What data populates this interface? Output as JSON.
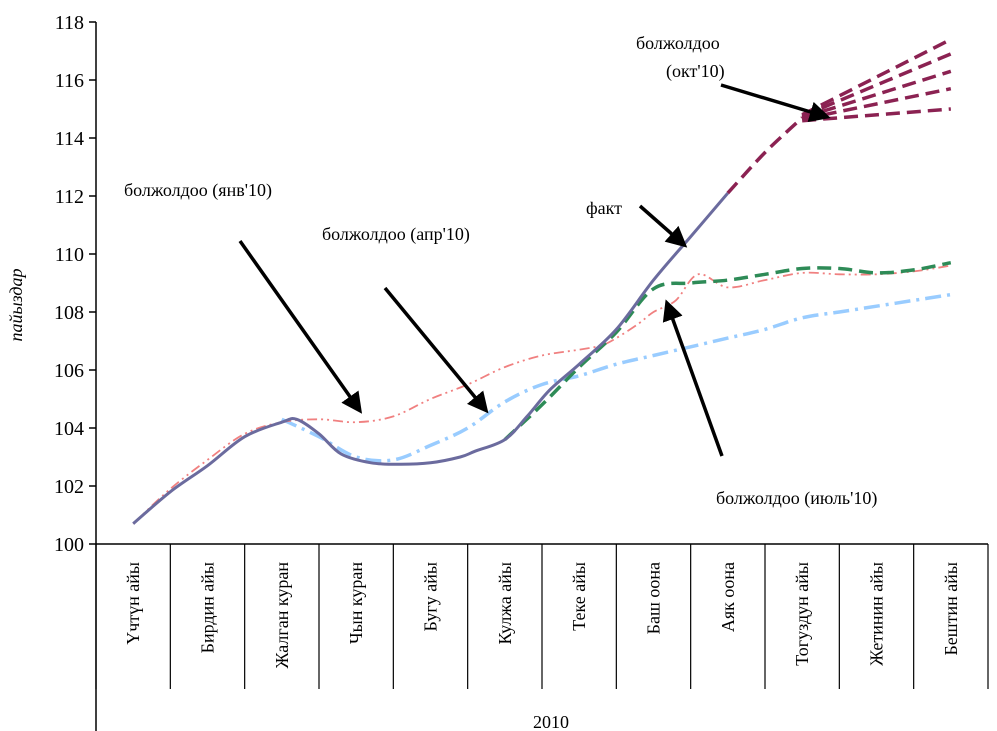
{
  "chart_data": {
    "type": "line",
    "xlabel": "2010",
    "ylabel": "пайыздар",
    "ylim": [
      100,
      118
    ],
    "yticks": [
      100,
      102,
      104,
      106,
      108,
      110,
      112,
      114,
      116,
      118
    ],
    "categories": [
      "Үчтүн айы",
      "Бирдин айы",
      "Жалган куран",
      "Чын куран",
      "Бугу айы",
      "Кулжа айы",
      "Теке айы",
      "Баш оона",
      "Аяк оона",
      "Тогуздун айы",
      "Жетинин айы",
      "Бештин айы"
    ],
    "series": [
      {
        "name": "факт",
        "color": "#6B6B9E",
        "style": "solid",
        "x": [
          0,
          0.5,
          1,
          1.5,
          2,
          2.2,
          2.5,
          2.8,
          3.2,
          3.6,
          4,
          4.4,
          4.6,
          5,
          5.3,
          5.6,
          6,
          6.5,
          7,
          7.5,
          8
        ],
        "values": [
          100.7,
          101.8,
          102.7,
          103.7,
          104.2,
          104.3,
          103.8,
          103.1,
          102.8,
          102.75,
          102.8,
          103.0,
          103.2,
          103.6,
          104.4,
          105.3,
          106.2,
          107.4,
          109.1,
          110.6,
          112.1
        ]
      },
      {
        "name": "болжолдоо (янв'10)",
        "color": "#F08080",
        "style": "dashdotdot",
        "x": [
          0,
          0.5,
          1,
          1.5,
          2,
          2.5,
          3,
          3.5,
          4,
          4.5,
          5,
          5.5,
          6,
          6.3,
          6.5,
          6.8,
          7,
          7.3,
          7.6,
          8,
          8.5,
          9,
          9.5,
          10,
          10.5,
          11
        ],
        "values": [
          100.7,
          101.9,
          102.9,
          103.8,
          104.2,
          104.3,
          104.2,
          104.4,
          105.0,
          105.5,
          106.1,
          106.5,
          106.7,
          106.85,
          107.1,
          107.6,
          108.0,
          108.4,
          109.3,
          108.85,
          109.1,
          109.35,
          109.3,
          109.3,
          109.4,
          109.6
        ]
      },
      {
        "name": "болжолдоо (апр'10)",
        "color": "#99CCFF",
        "style": "dashdot",
        "x": [
          2,
          2.5,
          3,
          3.5,
          4,
          4.5,
          5,
          5.5,
          6,
          6.5,
          7,
          7.5,
          8,
          8.5,
          9,
          9.5,
          10,
          10.5,
          11
        ],
        "values": [
          104.3,
          103.7,
          103.0,
          102.9,
          103.4,
          104.0,
          104.9,
          105.5,
          105.8,
          106.2,
          106.5,
          106.8,
          107.1,
          107.4,
          107.8,
          108.0,
          108.2,
          108.4,
          108.6
        ]
      },
      {
        "name": "болжолдоо (июль'10)",
        "color": "#2E8B57",
        "style": "dashed",
        "x": [
          5,
          5.5,
          6,
          6.5,
          7,
          7.5,
          8,
          8.5,
          9,
          9.5,
          10,
          10.5,
          11
        ],
        "values": [
          103.6,
          104.8,
          106.1,
          107.3,
          108.8,
          109.0,
          109.1,
          109.3,
          109.5,
          109.5,
          109.35,
          109.45,
          109.7
        ]
      },
      {
        "name": "болжолдоо (окт'10)",
        "color": "#8B2252",
        "style": "dashed",
        "x": [
          8,
          8.5,
          9
        ],
        "values": [
          112.1,
          113.5,
          114.7
        ],
        "fan_x": 11,
        "fan_end": [
          117.4,
          116.9,
          116.3,
          115.7,
          115.0
        ]
      }
    ],
    "annotations": [
      {
        "text": "болжолдоо (янв'10)",
        "target_series": 1
      },
      {
        "text": "болжолдоо (апр'10)",
        "target_series": 2
      },
      {
        "text": "факт",
        "target_series": 0
      },
      {
        "text": "болжолдоо (июль'10)",
        "target_series": 3
      },
      {
        "text": "болжолдоо",
        "text2": "(окт'10)",
        "target_series": 4
      }
    ]
  }
}
